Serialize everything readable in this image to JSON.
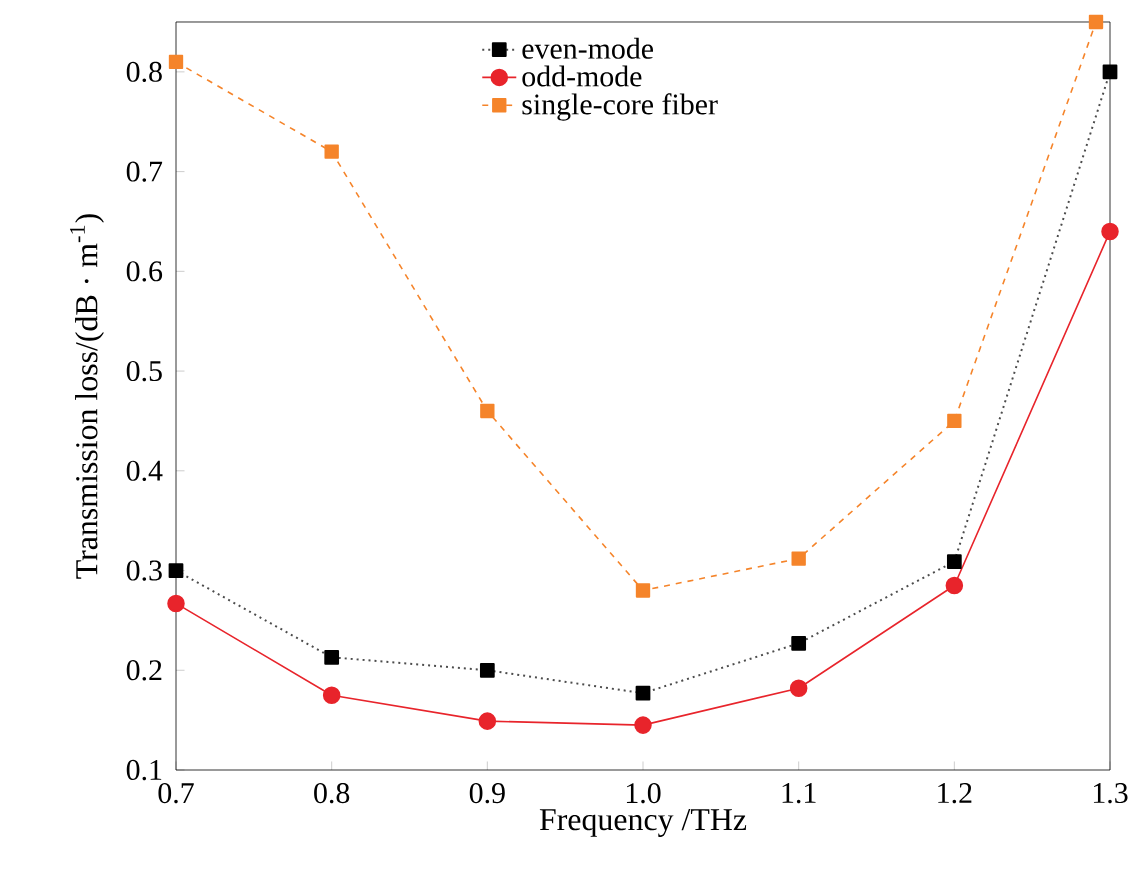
{
  "chart_data": {
    "type": "line",
    "xlabel": "Frequency /THz",
    "ylabel": "Transmission loss/(dB · m$^{-1}$)",
    "x": [
      0.7,
      0.8,
      0.9,
      1.0,
      1.1,
      1.2,
      1.3
    ],
    "series": [
      {
        "name": "even-mode",
        "color": "#000000",
        "marker": "square",
        "line_style": "dotted",
        "values": [
          0.3,
          0.213,
          0.2,
          0.177,
          0.227,
          0.309,
          0.8
        ]
      },
      {
        "name": "odd-mode",
        "color": "#e8242b",
        "marker": "circle",
        "line_style": "solid",
        "values": [
          0.267,
          0.175,
          0.149,
          0.145,
          0.182,
          0.285,
          0.64
        ]
      },
      {
        "name": "single-core fiber",
        "color": "#f5842a",
        "marker": "square",
        "line_style": "dashed",
        "x": [
          0.7,
          0.8,
          0.9,
          1.0,
          1.1,
          1.2,
          1.291
        ],
        "values": [
          0.81,
          0.72,
          0.46,
          0.28,
          0.312,
          0.45,
          0.85
        ]
      }
    ],
    "xlim": [
      0.7,
      1.3
    ],
    "ylim": [
      0.1,
      0.85
    ],
    "xticks": [
      0.7,
      0.8,
      0.9,
      {
        "value": 1.0,
        "label": "1.0"
      },
      1.1,
      1.2,
      1.3
    ],
    "yticks": [
      0.1,
      0.2,
      0.3,
      0.4,
      0.5,
      0.6,
      0.7,
      0.8
    ],
    "grid": false,
    "legend": "top"
  }
}
